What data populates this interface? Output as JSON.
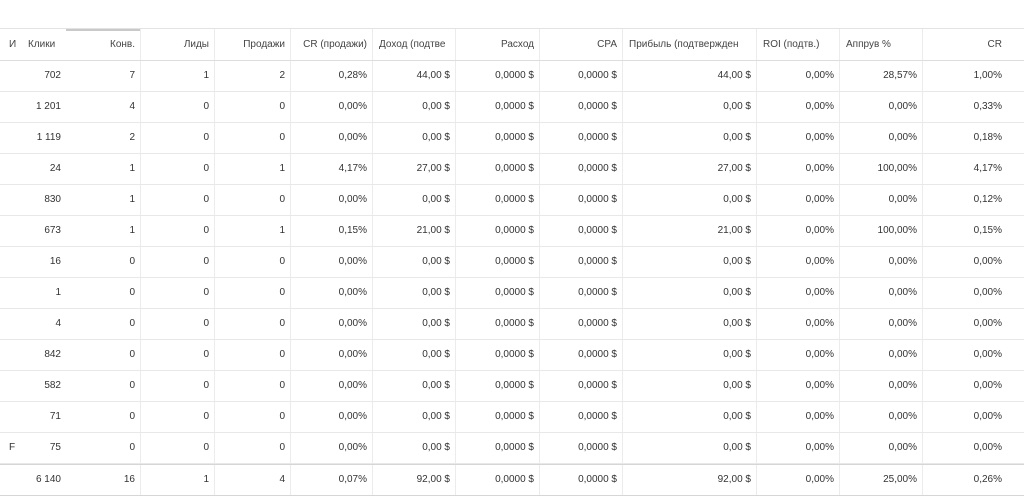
{
  "table": {
    "columns": [
      "И",
      "Клики",
      "Конв.",
      "Лиды",
      "Продажи",
      "CR (продажи)",
      "Доход (подтве",
      "Расход",
      "CPA",
      "Прибыль (подтвержден",
      "ROI (подтв.)",
      "Аппрув %",
      "CR"
    ],
    "rows": [
      [
        "",
        "702",
        "7",
        "1",
        "2",
        "0,28%",
        "44,00 $",
        "0,0000 $",
        "0,0000 $",
        "44,00 $",
        "0,00%",
        "28,57%",
        "1,00%"
      ],
      [
        "",
        "1 201",
        "4",
        "0",
        "0",
        "0,00%",
        "0,00 $",
        "0,0000 $",
        "0,0000 $",
        "0,00 $",
        "0,00%",
        "0,00%",
        "0,33%"
      ],
      [
        "",
        "1 119",
        "2",
        "0",
        "0",
        "0,00%",
        "0,00 $",
        "0,0000 $",
        "0,0000 $",
        "0,00 $",
        "0,00%",
        "0,00%",
        "0,18%"
      ],
      [
        "",
        "24",
        "1",
        "0",
        "1",
        "4,17%",
        "27,00 $",
        "0,0000 $",
        "0,0000 $",
        "27,00 $",
        "0,00%",
        "100,00%",
        "4,17%"
      ],
      [
        "",
        "830",
        "1",
        "0",
        "0",
        "0,00%",
        "0,00 $",
        "0,0000 $",
        "0,0000 $",
        "0,00 $",
        "0,00%",
        "0,00%",
        "0,12%"
      ],
      [
        "",
        "673",
        "1",
        "0",
        "1",
        "0,15%",
        "21,00 $",
        "0,0000 $",
        "0,0000 $",
        "21,00 $",
        "0,00%",
        "100,00%",
        "0,15%"
      ],
      [
        "",
        "16",
        "0",
        "0",
        "0",
        "0,00%",
        "0,00 $",
        "0,0000 $",
        "0,0000 $",
        "0,00 $",
        "0,00%",
        "0,00%",
        "0,00%"
      ],
      [
        "",
        "1",
        "0",
        "0",
        "0",
        "0,00%",
        "0,00 $",
        "0,0000 $",
        "0,0000 $",
        "0,00 $",
        "0,00%",
        "0,00%",
        "0,00%"
      ],
      [
        "",
        "4",
        "0",
        "0",
        "0",
        "0,00%",
        "0,00 $",
        "0,0000 $",
        "0,0000 $",
        "0,00 $",
        "0,00%",
        "0,00%",
        "0,00%"
      ],
      [
        "",
        "842",
        "0",
        "0",
        "0",
        "0,00%",
        "0,00 $",
        "0,0000 $",
        "0,0000 $",
        "0,00 $",
        "0,00%",
        "0,00%",
        "0,00%"
      ],
      [
        "",
        "582",
        "0",
        "0",
        "0",
        "0,00%",
        "0,00 $",
        "0,0000 $",
        "0,0000 $",
        "0,00 $",
        "0,00%",
        "0,00%",
        "0,00%"
      ],
      [
        "",
        "71",
        "0",
        "0",
        "0",
        "0,00%",
        "0,00 $",
        "0,0000 $",
        "0,0000 $",
        "0,00 $",
        "0,00%",
        "0,00%",
        "0,00%"
      ],
      [
        "F",
        "75",
        "0",
        "0",
        "0",
        "0,00%",
        "0,00 $",
        "0,0000 $",
        "0,0000 $",
        "0,00 $",
        "0,00%",
        "0,00%",
        "0,00%"
      ]
    ],
    "totals": [
      "",
      "6 140",
      "16",
      "1",
      "4",
      "0,07%",
      "92,00 $",
      "0,0000 $",
      "0,0000 $",
      "92,00 $",
      "0,00%",
      "25,00%",
      "0,26%"
    ]
  }
}
